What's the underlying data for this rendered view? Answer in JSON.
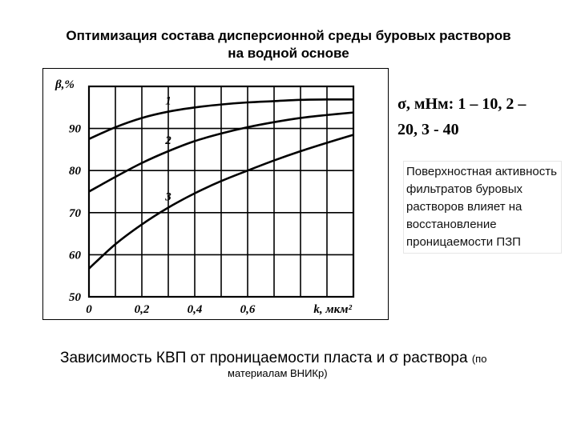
{
  "title_line1": "Оптимизация состава дисперсионной среды буровых растворов",
  "title_line2": "на водной основе",
  "legend_line1": "σ, мНм: 1 – 10, 2 –",
  "legend_line2": "20, 3 - 40",
  "note": "Поверхностная активность фильтратов буровых растворов влияет на восстановление проницаемости ПЗП",
  "caption_main": "Зависимость КВП от проницаемости пласта и σ раствора",
  "caption_paren_open": "(по",
  "caption_line2": "материалам ВНИКр)",
  "chart_data": {
    "type": "line",
    "ylabel": "β,%",
    "xlabel": "k, мкм²",
    "xlim": [
      0,
      1.0
    ],
    "ylim": [
      50,
      100
    ],
    "x_ticks": [
      0,
      0.2,
      0.4,
      0.6
    ],
    "x_tick_labels": [
      "0",
      "0,2",
      "0,4",
      "0,6"
    ],
    "y_ticks": [
      50,
      60,
      70,
      80,
      90
    ],
    "y_tick_labels": [
      "50",
      "60",
      "70",
      "80",
      "90"
    ],
    "grid": true,
    "series": [
      {
        "name": "1",
        "x": [
          0,
          0.1,
          0.2,
          0.3,
          0.4,
          0.5,
          0.6,
          0.7,
          0.8,
          0.9,
          1.0
        ],
        "y": [
          87.5,
          90.3,
          92.5,
          94.0,
          95.0,
          95.7,
          96.2,
          96.5,
          96.8,
          96.9,
          96.9
        ]
      },
      {
        "name": "2",
        "x": [
          0,
          0.1,
          0.2,
          0.3,
          0.4,
          0.5,
          0.6,
          0.7,
          0.8,
          0.9,
          1.0
        ],
        "y": [
          75.0,
          78.5,
          81.8,
          84.6,
          87.0,
          88.8,
          90.3,
          91.5,
          92.5,
          93.2,
          93.8
        ]
      },
      {
        "name": "3",
        "x": [
          0,
          0.1,
          0.2,
          0.3,
          0.4,
          0.5,
          0.6,
          0.7,
          0.8,
          0.9,
          1.0
        ],
        "y": [
          56.7,
          62.5,
          67.2,
          71.2,
          74.6,
          77.5,
          80.0,
          82.4,
          84.6,
          86.6,
          88.5
        ]
      }
    ],
    "series_labels_at": [
      0.3,
      0.3,
      0.3
    ]
  }
}
